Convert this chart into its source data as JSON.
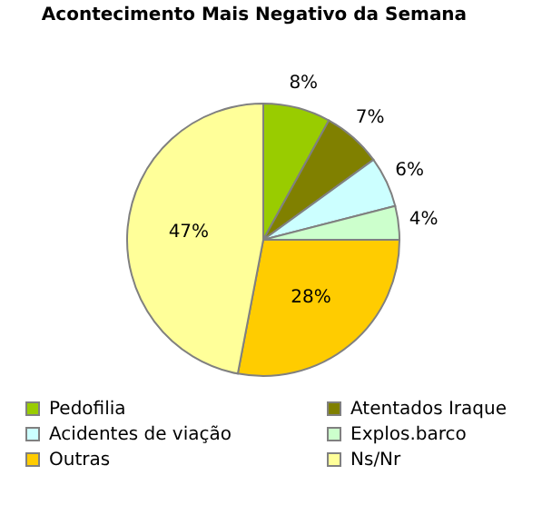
{
  "chart_data": {
    "type": "pie",
    "title": "Acontecimento Mais Negativo da Semana",
    "categories": [
      "Pedofilia",
      "Atentados Iraque",
      "Acidentes de viação",
      "Explos.barco",
      "Outras",
      "Ns/Nr"
    ],
    "values": [
      8,
      7,
      6,
      4,
      28,
      47
    ],
    "value_labels": [
      "8%",
      "7%",
      "6%",
      "4%",
      "28%",
      "47%"
    ],
    "colors": [
      "#99cc00",
      "#808000",
      "#ccffff",
      "#ccffcc",
      "#ffcc00",
      "#ffff99"
    ],
    "legend": "bottom"
  }
}
